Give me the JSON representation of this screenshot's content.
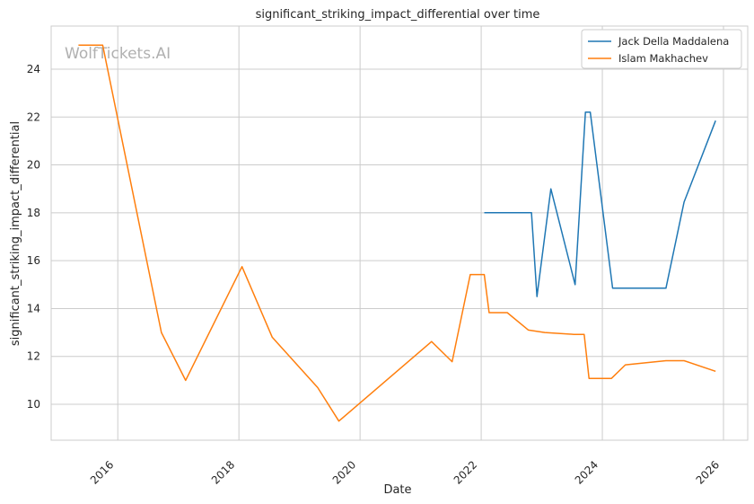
{
  "chart_data": {
    "type": "line",
    "title": "significant_striking_impact_differential over time",
    "xlabel": "Date",
    "ylabel": "significant_striking_impact_differential",
    "watermark": "WolfTickets.AI",
    "xlim": [
      2014.9,
      2026.4
    ],
    "ylim": [
      8.5,
      25.8
    ],
    "x_ticks": [
      2016,
      2018,
      2020,
      2022,
      2024,
      2026
    ],
    "x_tick_labels": [
      "2016",
      "2018",
      "2020",
      "2022",
      "2024",
      "2026"
    ],
    "y_ticks": [
      10,
      12,
      14,
      16,
      18,
      20,
      22,
      24
    ],
    "y_tick_labels": [
      "10",
      "12",
      "14",
      "16",
      "18",
      "20",
      "22",
      "24"
    ],
    "grid": true,
    "legend_position": "top-right",
    "series": [
      {
        "name": "Jack Della Maddalena",
        "color": "#1f77b4",
        "points": [
          [
            2022.05,
            18.0
          ],
          [
            2022.83,
            18.0
          ],
          [
            2022.92,
            14.5
          ],
          [
            2023.15,
            19.0
          ],
          [
            2023.55,
            15.0
          ],
          [
            2023.72,
            22.2
          ],
          [
            2023.8,
            22.2
          ],
          [
            2024.17,
            14.85
          ],
          [
            2025.05,
            14.85
          ],
          [
            2025.35,
            18.45
          ],
          [
            2025.87,
            21.85
          ]
        ]
      },
      {
        "name": "Islam Makhachev",
        "color": "#ff7f0e",
        "points": [
          [
            2015.35,
            25.0
          ],
          [
            2015.75,
            25.0
          ],
          [
            2016.72,
            13.0
          ],
          [
            2017.12,
            11.0
          ],
          [
            2018.05,
            15.75
          ],
          [
            2018.55,
            12.8
          ],
          [
            2019.3,
            10.7
          ],
          [
            2019.65,
            9.3
          ],
          [
            2021.18,
            12.62
          ],
          [
            2021.52,
            11.78
          ],
          [
            2021.82,
            15.42
          ],
          [
            2022.05,
            15.42
          ],
          [
            2022.13,
            13.83
          ],
          [
            2022.43,
            13.83
          ],
          [
            2022.78,
            13.1
          ],
          [
            2023.05,
            13.0
          ],
          [
            2023.53,
            12.92
          ],
          [
            2023.7,
            12.92
          ],
          [
            2023.78,
            11.08
          ],
          [
            2024.15,
            11.08
          ],
          [
            2024.38,
            11.65
          ],
          [
            2025.05,
            11.82
          ],
          [
            2025.35,
            11.82
          ],
          [
            2025.87,
            11.38
          ]
        ]
      }
    ]
  }
}
